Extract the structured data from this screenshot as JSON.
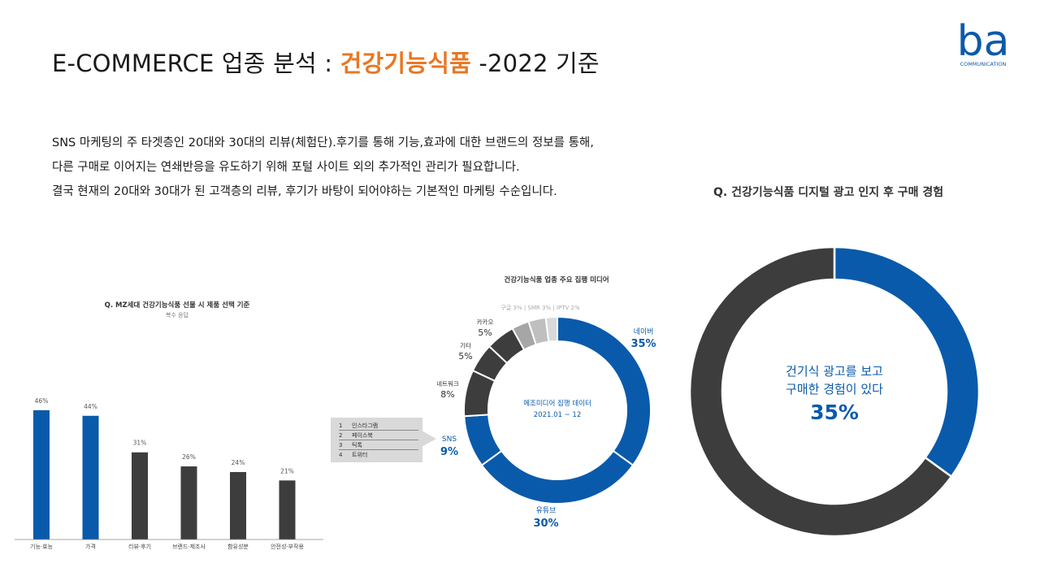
{
  "header": {
    "title_prefix": "E-COMMERCE 업종 분석 : ",
    "title_highlight": "건강기능식품",
    "title_suffix": " -2022 기준"
  },
  "logo": {
    "letters": "ba",
    "subtitle": "COMMUNICATION"
  },
  "intro": [
    "SNS 마케팅의 주 타겟층인 20대와 30대의 리뷰(체험단).후기를 통해 기능,효과에 대한 브랜드의 정보를 통해,",
    "다른 구매로 이어지는 연쇄반응을 유도하기 위해 포털 사이트 외의 추가적인 관리가 필요합니다.",
    "결국 현재의 20대와 30대가 된 고객층의 리뷰, 후기가 바탕이 되어야하는 기본적인 마케팅 수순입니다."
  ],
  "colors": {
    "blue": "#0a5aab",
    "dark": "#3d3d3d",
    "gray_light": "#d9d9d9",
    "gray_mid": "#a6a6a6",
    "gray": "#bfbfbf",
    "accent": "#e87722"
  },
  "chart_data": [
    {
      "type": "bar",
      "title": "Q. MZ세대 건강기능식품 선물 시 제품 선택 기준",
      "subtitle": "복수 응답",
      "categories": [
        "기능·효능",
        "가격",
        "리뷰·후기",
        "브랜드·제조사",
        "함유성분",
        "안전성·부작용"
      ],
      "values": [
        46,
        44,
        31,
        26,
        24,
        21
      ],
      "value_labels": [
        "46%",
        "44%",
        "31%",
        "26%",
        "24%",
        "21%"
      ],
      "bar_colors": [
        "#0a5aab",
        "#0a5aab",
        "#3d3d3d",
        "#3d3d3d",
        "#3d3d3d",
        "#3d3d3d"
      ],
      "ylim": [
        0,
        50
      ]
    },
    {
      "type": "pie",
      "style": "donut",
      "title": "건강기능식품 업종 주요 집행 미디어",
      "center_text": [
        "메조미디어 집행 데이터",
        "2021.01 ~ 12"
      ],
      "small_note": "구글 3% | SMR 3% | IPTV 2%",
      "slices": [
        {
          "name": "네이버",
          "value": 35,
          "label": "35%",
          "color": "#0a5aab"
        },
        {
          "name": "유튜브",
          "value": 30,
          "label": "30%",
          "color": "#0a5aab"
        },
        {
          "name": "SNS",
          "value": 9,
          "label": "9%",
          "color": "#0a5aab"
        },
        {
          "name": "네트워크",
          "value": 8,
          "label": "8%",
          "color": "#3d3d3d"
        },
        {
          "name": "기타",
          "value": 5,
          "label": "5%",
          "color": "#3d3d3d"
        },
        {
          "name": "카카오",
          "value": 5,
          "label": "5%",
          "color": "#3d3d3d"
        },
        {
          "name": "구글",
          "value": 3,
          "label": "",
          "color": "#a6a6a6"
        },
        {
          "name": "SMR",
          "value": 3,
          "label": "",
          "color": "#bfbfbf"
        },
        {
          "name": "IPTV",
          "value": 2,
          "label": "",
          "color": "#d9d9d9"
        }
      ],
      "sns_breakdown": [
        {
          "n": "1",
          "name": "인스타그램"
        },
        {
          "n": "2",
          "name": "페이스북"
        },
        {
          "n": "3",
          "name": "틱톡"
        },
        {
          "n": "4",
          "name": "트위터"
        }
      ]
    },
    {
      "type": "pie",
      "style": "donut",
      "title": "Q. 건강기능식품 디지털 광고 인지 후 구매 경험",
      "center_text": [
        "건기식 광고를 보고",
        "구매한 경험이 있다"
      ],
      "center_value": "35%",
      "slices": [
        {
          "name": "건기식 광고를 보고 구매한 경험이 있다",
          "value": 35,
          "color": "#0a5aab"
        },
        {
          "name": "",
          "value": 65,
          "color": "#3d3d3d"
        }
      ]
    }
  ]
}
